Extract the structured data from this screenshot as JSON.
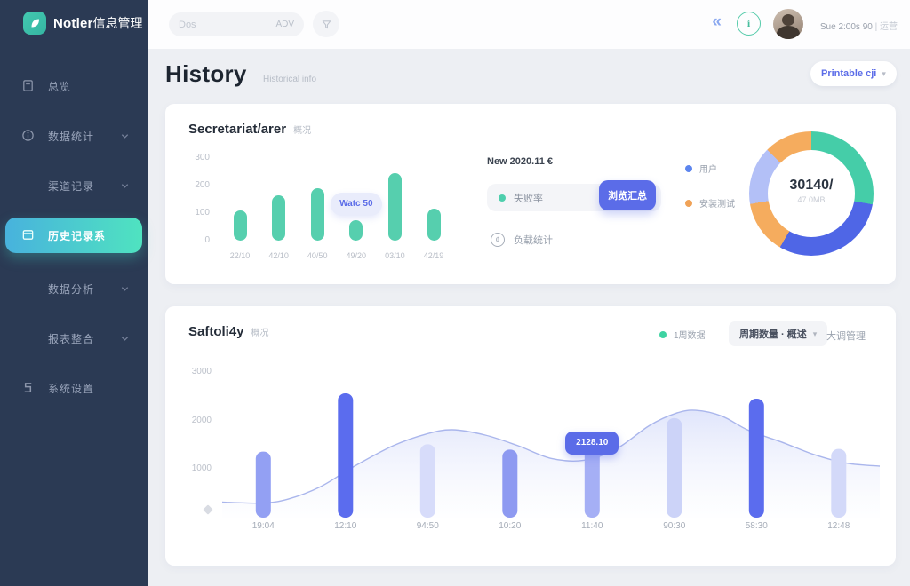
{
  "sidebar": {
    "logo_text": "Notler",
    "logo_suffix": "信息管理",
    "items": [
      {
        "label": "总览",
        "icon": "doc",
        "chevron": false,
        "active": false
      },
      {
        "label": "数据统计",
        "icon": "info",
        "chevron": true,
        "active": false
      },
      {
        "label": "渠道记录",
        "icon": "",
        "chevron": true,
        "active": false
      },
      {
        "label": "历史记录系",
        "icon": "folder",
        "chevron": false,
        "active": true
      },
      {
        "label": "数据分析",
        "icon": "",
        "chevron": true,
        "active": false
      },
      {
        "label": "报表整合",
        "icon": "",
        "chevron": true,
        "active": false
      },
      {
        "label": "系统设置",
        "icon": "settings",
        "chevron": false,
        "active": false
      }
    ]
  },
  "topbar": {
    "search_placeholder": "Dos",
    "search_hint": "ADV",
    "collapse_icon": "«",
    "info_icon": "i",
    "user_name": "Sue 2:00s 90",
    "user_role": "| 运营"
  },
  "header": {
    "title": "History",
    "subtitle": "Historical info",
    "action_label": "Printable cji",
    "action_caret": "▾"
  },
  "card1": {
    "title": "Secretariat/arer",
    "title_suffix": "概况",
    "tooltip": "Watc 50",
    "panel": {
      "heading": "New 2020.11 €",
      "row1": "失败率",
      "button": "浏览汇总",
      "row2": "负载统计"
    },
    "legend": [
      {
        "label": "用户",
        "color": "#5c85ee"
      },
      {
        "label": "安装测试",
        "color": "#f0a257"
      }
    ],
    "donut_value": "30140/",
    "donut_sub": "47.0MB"
  },
  "card2": {
    "title": "Saftoli4y",
    "title_suffix": "概况",
    "legend_label": "1周数据",
    "legend_color": "#3ed3a2",
    "filter_label": "周期数量 · 概述",
    "filter_caret": "▾",
    "link_label": "大调管理",
    "tooltip": "2128.10"
  },
  "accent_colors": {
    "primary_blue": "#5b6ce8",
    "teal": "#56cfae",
    "sidebar_bg": "#2b3a54"
  },
  "chart_data": [
    {
      "type": "bar",
      "title": "Secretariat/arer 概况",
      "categories": [
        "22/10",
        "42/10",
        "40/50",
        "49/20",
        "03/10",
        "42/19"
      ],
      "values": [
        110,
        165,
        190,
        75,
        245,
        115
      ],
      "bar_color": "#56cfae",
      "ylim": [
        0,
        300
      ],
      "yticks": [
        300,
        200,
        100,
        0
      ],
      "grid": false,
      "tooltip_index": 3,
      "tooltip_text": "Watc 50"
    },
    {
      "type": "pie",
      "title": "donut-summary",
      "center_value": "30140/",
      "center_sub": "47.0MB",
      "segments": [
        {
          "label": "segment-green",
          "value": 27.8,
          "color": "#45cda8"
        },
        {
          "label": "segment-blue",
          "value": 30.6,
          "color": "#4f66e6"
        },
        {
          "label": "segment-orange",
          "value": 13.9,
          "color": "#f5ac5e"
        },
        {
          "label": "segment-lavender",
          "value": 15.2,
          "color": "#b3c0f7"
        },
        {
          "label": "segment-orange-2",
          "value": 12.5,
          "color": "#f5ac5e"
        }
      ]
    },
    {
      "type": "bar+area",
      "title": "Saftoli4y 概况",
      "categories": [
        "19:04",
        "12:10",
        "94:50",
        "10:20",
        "11:40",
        "90:30",
        "58:30",
        "12:48"
      ],
      "bar_values": [
        1360,
        2560,
        1510,
        1400,
        1450,
        2050,
        2450,
        1415
      ],
      "bar_colors": [
        "#93a0f3",
        "#5b6cee",
        "#d7dcfa",
        "#8e9af1",
        "#a5aff5",
        "#ccd3f8",
        "#5b6cee",
        "#d3d9f9"
      ],
      "area_series": [
        [
          0,
          320
        ],
        [
          0.06,
          300
        ],
        [
          0.1,
          380
        ],
        [
          0.15,
          640
        ],
        [
          0.2,
          1050
        ],
        [
          0.26,
          1480
        ],
        [
          0.31,
          1720
        ],
        [
          0.35,
          1810
        ],
        [
          0.4,
          1700
        ],
        [
          0.45,
          1480
        ],
        [
          0.5,
          1220
        ],
        [
          0.55,
          1180
        ],
        [
          0.6,
          1420
        ],
        [
          0.65,
          1900
        ],
        [
          0.69,
          2150
        ],
        [
          0.72,
          2210
        ],
        [
          0.76,
          2090
        ],
        [
          0.8,
          1800
        ],
        [
          0.85,
          1560
        ],
        [
          0.9,
          1300
        ],
        [
          0.95,
          1120
        ],
        [
          1,
          1060
        ]
      ],
      "area_line_color": "#aab6ec",
      "ylim": [
        0,
        3400
      ],
      "yticks": [
        3000,
        2000,
        1000
      ],
      "grid": false,
      "tooltip_index": 4,
      "tooltip_text": "2128.10"
    }
  ]
}
